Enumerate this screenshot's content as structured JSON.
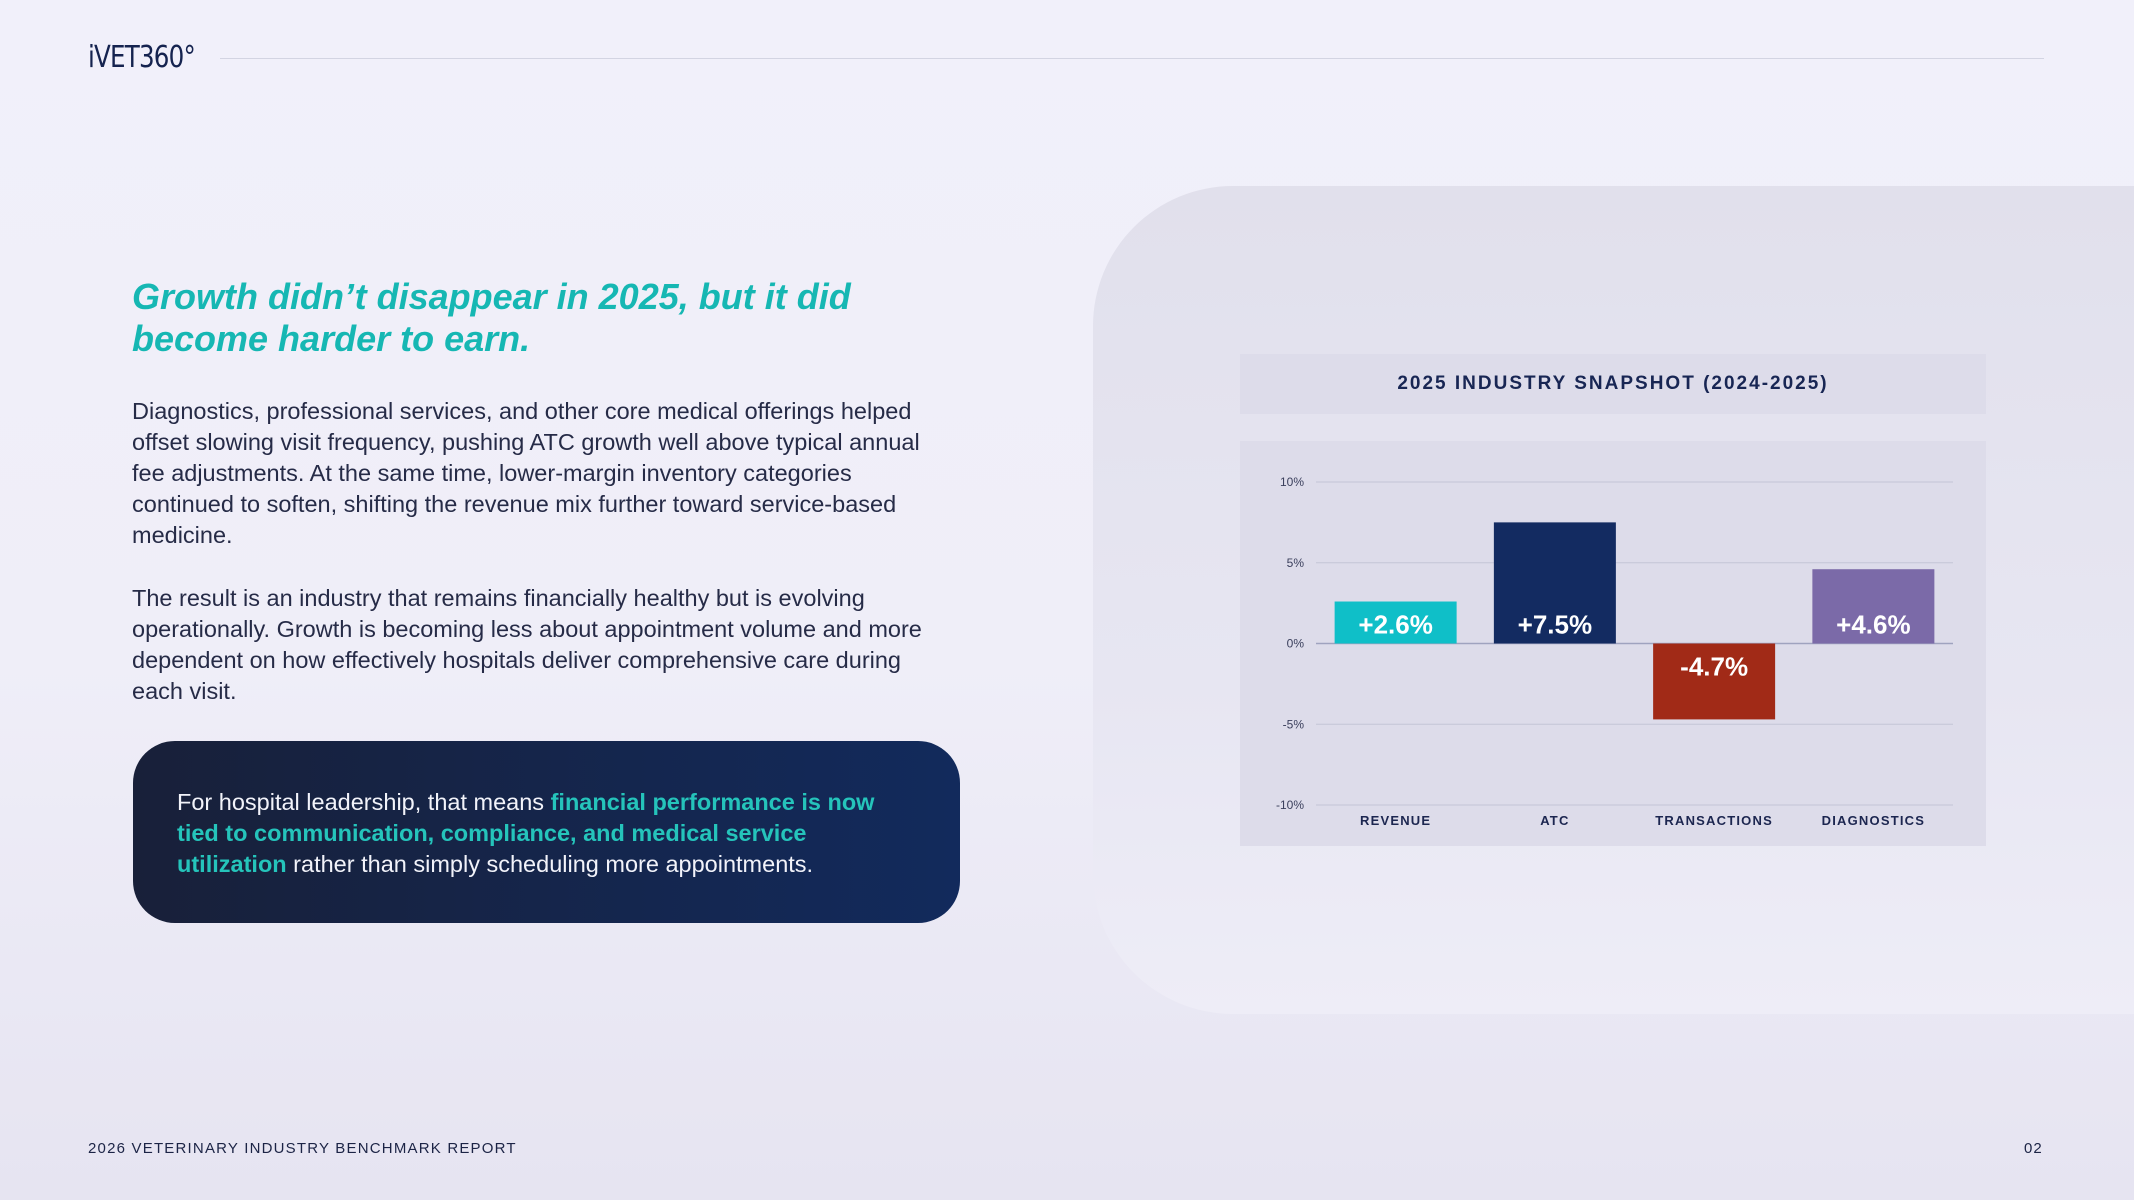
{
  "header": {
    "logo": "iVET360°"
  },
  "main": {
    "headline": "Growth didn’t disappear in 2025, but it did become harder to earn.",
    "paragraph1": "Diagnostics, professional services, and other core medical offerings helped offset slowing visit frequency, pushing ATC growth well above typical annual fee adjustments. At the same time, lower-margin inventory categories continued to soften, shifting the revenue mix further toward service-based medicine.",
    "paragraph2": "The result is an industry that remains financially healthy but is evolving operationally. Growth is becoming less about appointment volume and more dependent on how effectively hospitals deliver comprehensive care during each visit.",
    "callout": {
      "lead": "For hospital leadership, that means ",
      "highlight": "financial performance is now tied to communication, compliance, and medical service utilization",
      "tail": " rather than simply scheduling more appointments."
    }
  },
  "chart_data": {
    "type": "bar",
    "title": "2025 INDUSTRY SNAPSHOT (2024-2025)",
    "categories": [
      "REVENUE",
      "ATC",
      "TRANSACTIONS",
      "DIAGNOSTICS"
    ],
    "values": [
      2.6,
      7.5,
      -4.7,
      4.6
    ],
    "data_labels": [
      "+2.6%",
      "+7.5%",
      "-4.7%",
      "+4.6%"
    ],
    "colors": [
      "#0fbfc8",
      "#132b61",
      "#a12a17",
      "#7b6aa8"
    ],
    "ylim": [
      -10,
      10
    ],
    "yticks": [
      10,
      5,
      0,
      -5,
      -10
    ],
    "ytick_labels": [
      "10%",
      "5%",
      "0%",
      "-5%",
      "-10%"
    ],
    "grid": true,
    "legend": "none"
  },
  "footer": {
    "report_name": "2026 VETERINARY INDUSTRY BENCHMARK REPORT",
    "page_number": "02"
  }
}
